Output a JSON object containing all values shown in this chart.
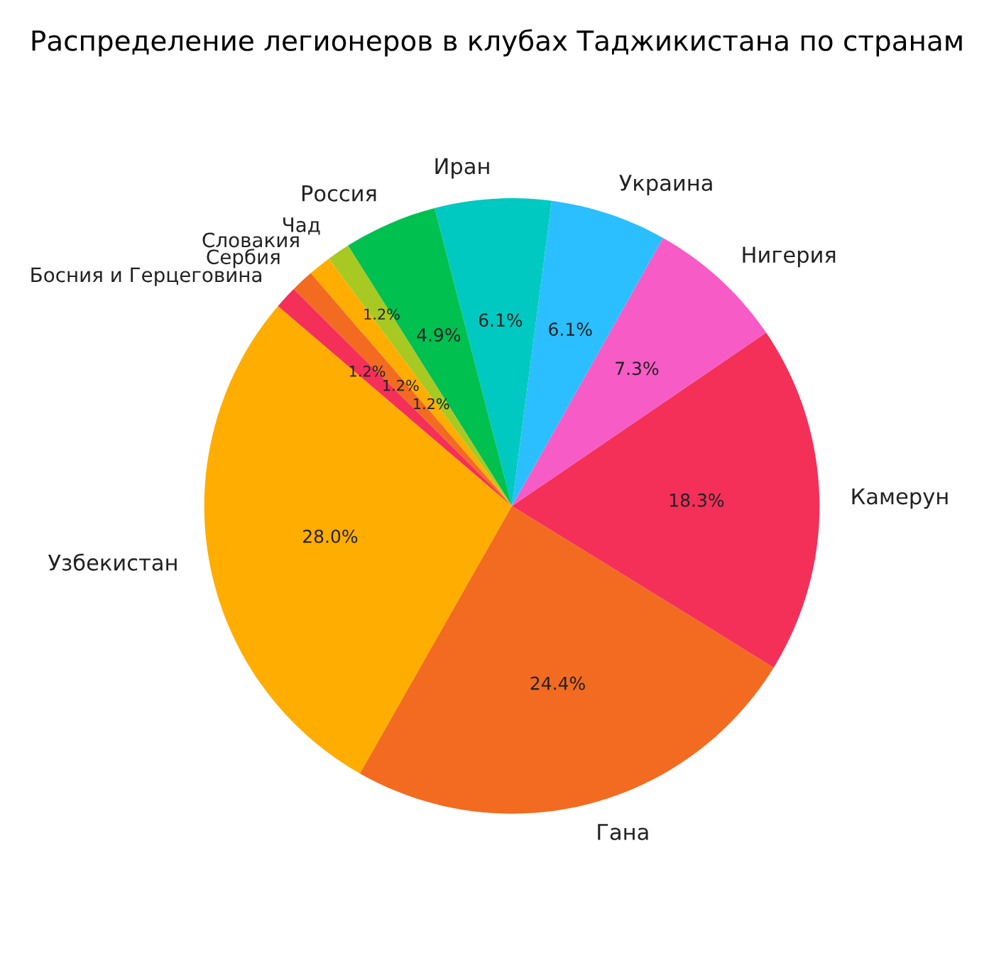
{
  "chart_data": {
    "type": "pie",
    "title": "Распределение легионеров в клубах Таджикистана по странам",
    "categories": [
      "Узбекистан",
      "Гана",
      "Камерун",
      "Нигерия",
      "Украина",
      "Иран",
      "Россия",
      "Чад",
      "Словакия",
      "Сербия",
      "Босния и Герцеговина"
    ],
    "values": [
      28.0,
      24.4,
      18.3,
      7.3,
      6.1,
      6.1,
      4.9,
      1.2,
      1.2,
      1.2,
      1.2
    ],
    "colors": [
      "#ffad00",
      "#f26b21",
      "#f43059",
      "#f75bc6",
      "#2bbfff",
      "#00c9c1",
      "#00c050",
      "#a7c922",
      "#ffad00",
      "#f26b21",
      "#f43059"
    ],
    "value_labels": [
      "28.0%",
      "24.4%",
      "18.3%",
      "7.3%",
      "6.1%",
      "6.1%",
      "4.9%",
      "1.2%",
      "1.2%",
      "1.2%",
      "1.2%"
    ]
  }
}
